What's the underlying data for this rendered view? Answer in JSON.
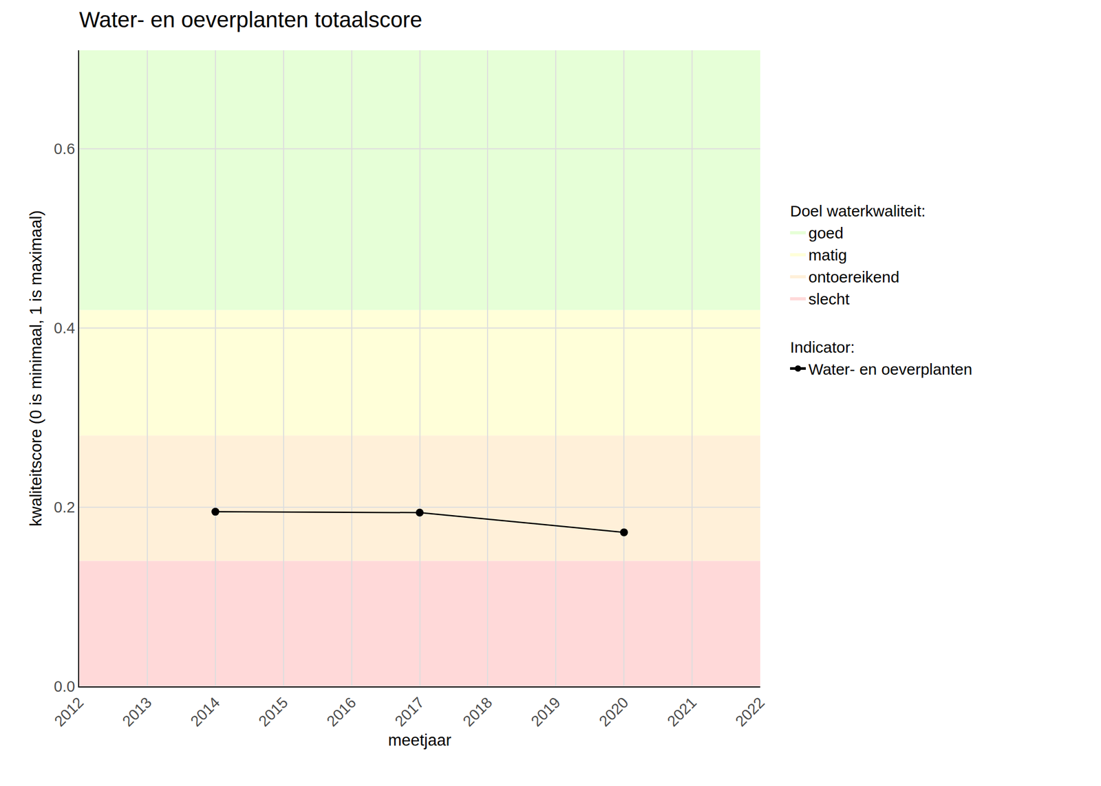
{
  "chart_data": {
    "type": "line",
    "title": "Water- en oeverplanten totaalscore",
    "x_label": "meetjaar",
    "y_label": "kwaliteitscore (0 is minimaal, 1 is maximaal)",
    "x": [
      2014,
      2017,
      2020
    ],
    "series": [
      {
        "name": "Water- en oeverplanten",
        "color": "#000000",
        "marker": "circle",
        "values": [
          0.195,
          0.194,
          0.172
        ]
      }
    ],
    "series_title": "Indicator:",
    "bands_title": "Doel waterkwaliteit:",
    "bands": [
      {
        "name": "goed",
        "from": 0.42,
        "to": 0.71,
        "color": "#e6ffd7"
      },
      {
        "name": "matig",
        "from": 0.28,
        "to": 0.42,
        "color": "#ffffd9"
      },
      {
        "name": "ontoereikend",
        "from": 0.14,
        "to": 0.28,
        "color": "#fff0d9"
      },
      {
        "name": "slecht",
        "from": 0,
        "to": 0.14,
        "color": "#ffd9d9"
      }
    ],
    "xlim": [
      2012,
      2022
    ],
    "xticks": [
      2012,
      2013,
      2014,
      2015,
      2016,
      2017,
      2018,
      2019,
      2020,
      2021,
      2022
    ],
    "ylim": [
      0,
      0.71
    ],
    "yticks": [
      {
        "value": 0,
        "label": "0.0"
      },
      {
        "value": 0.2,
        "label": "0.2"
      },
      {
        "value": 0.4,
        "label": "0.4"
      },
      {
        "value": 0.6,
        "label": "0.6"
      }
    ],
    "grid": true
  }
}
